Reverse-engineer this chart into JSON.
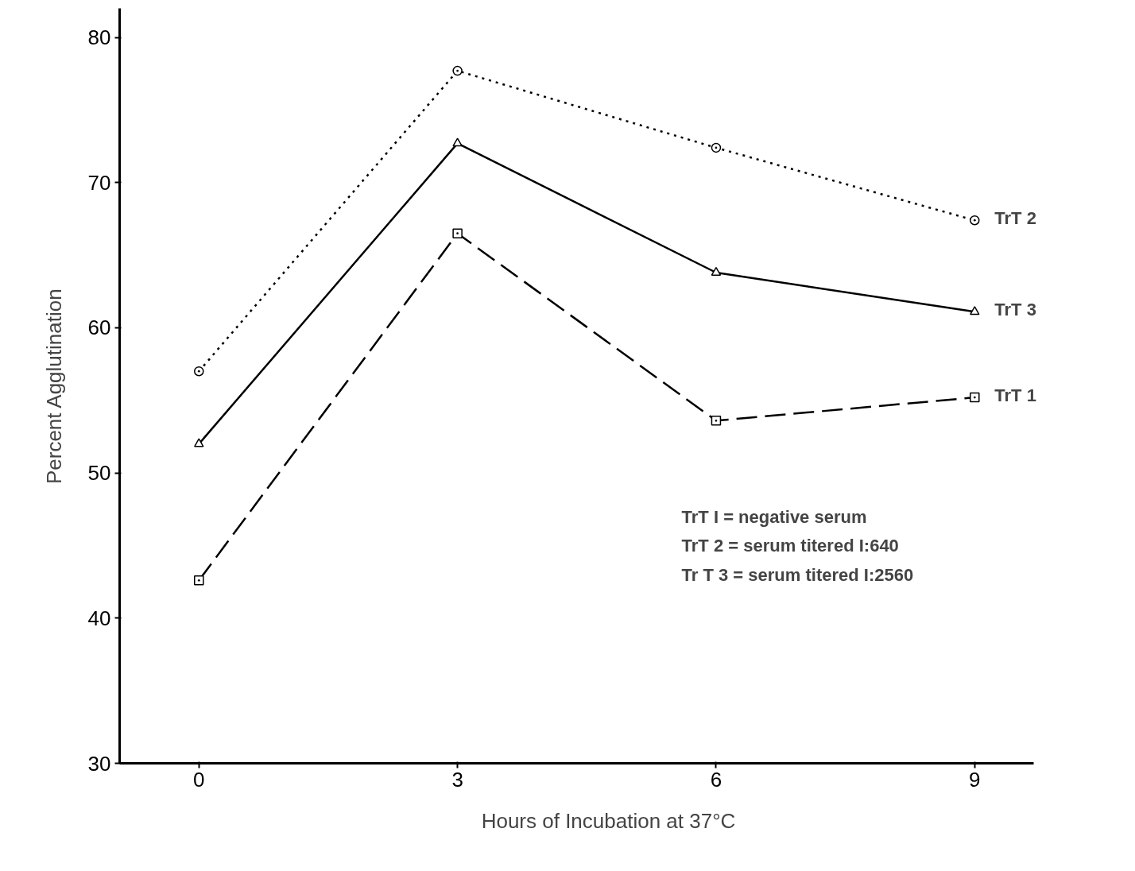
{
  "chart_data": {
    "type": "line",
    "xlabel": "Hours of Incubation at 37°C",
    "ylabel": "Percent Agglutination",
    "x": [
      0,
      3,
      6,
      9
    ],
    "xlim": [
      -0.92,
      9.68
    ],
    "xticks": [
      0,
      3,
      6,
      9
    ],
    "ylim": [
      30,
      82
    ],
    "yticks": [
      30,
      40,
      50,
      60,
      70,
      80
    ],
    "grid": false,
    "legend": false,
    "series": [
      {
        "name": "TrT 2",
        "color": "#000000",
        "marker": "circle",
        "line_style": "dotted",
        "values": [
          57.0,
          77.7,
          72.4,
          67.4
        ]
      },
      {
        "name": "TrT 3",
        "color": "#000000",
        "marker": "triangle",
        "line_style": "solid",
        "values": [
          52.0,
          72.7,
          63.8,
          61.1
        ]
      },
      {
        "name": "TrT 1",
        "color": "#000000",
        "marker": "square",
        "line_style": "dashed",
        "values": [
          42.6,
          66.5,
          53.6,
          55.2
        ]
      }
    ],
    "annotations": [
      "TrT I  = negative serum",
      "TrT 2 = serum titered I:640",
      "Tr T 3 = serum titered I:2560"
    ]
  }
}
